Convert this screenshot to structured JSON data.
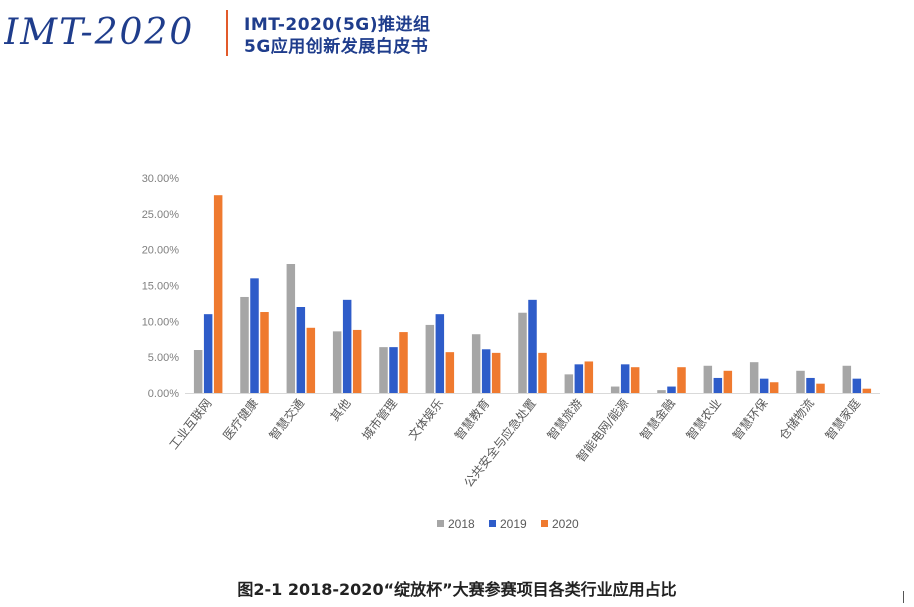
{
  "header": {
    "logo_text": "IMT-2020",
    "line1": "IMT-2020(5G)推进组",
    "line2": "5G应用创新发展白皮书",
    "accent": "#e25a2a",
    "brand": "#1f3d8c"
  },
  "caption": "图2-1  2018-2020“绽放杯”大赛参赛项目各类行业应用占比",
  "chart_data": {
    "type": "bar",
    "title": "",
    "xlabel": "",
    "ylabel": "",
    "ylim": [
      0,
      30
    ],
    "yticks": [
      0,
      5,
      10,
      15,
      20,
      25,
      30
    ],
    "ytick_labels": [
      "0.00%",
      "5.00%",
      "10.00%",
      "15.00%",
      "20.00%",
      "25.00%",
      "30.00%"
    ],
    "grid": false,
    "legend": "bottom",
    "categories": [
      "工业互联网",
      "医疗健康",
      "智慧交通",
      "其他",
      "城市管理",
      "文体娱乐",
      "智慧教育",
      "公共安全与应急处置",
      "智慧旅游",
      "智能电网/能源",
      "智慧金融",
      "智慧农业",
      "智慧环保",
      "仓储物流",
      "智慧家庭"
    ],
    "series": [
      {
        "name": "2018",
        "color": "#a6a6a6",
        "values": [
          6.0,
          13.4,
          18.0,
          8.6,
          6.4,
          9.5,
          8.2,
          11.2,
          2.6,
          0.9,
          0.4,
          3.8,
          4.3,
          3.1,
          3.8
        ]
      },
      {
        "name": "2019",
        "color": "#2e5cc9",
        "values": [
          11.0,
          16.0,
          12.0,
          13.0,
          6.4,
          11.0,
          6.1,
          13.0,
          4.0,
          4.0,
          0.9,
          2.1,
          2.0,
          2.1,
          2.0
        ]
      },
      {
        "name": "2020",
        "color": "#ef7a2f",
        "values": [
          27.6,
          11.3,
          9.1,
          8.8,
          8.5,
          5.7,
          5.6,
          5.6,
          4.4,
          3.6,
          3.6,
          3.1,
          1.5,
          1.3,
          0.6
        ]
      }
    ]
  }
}
